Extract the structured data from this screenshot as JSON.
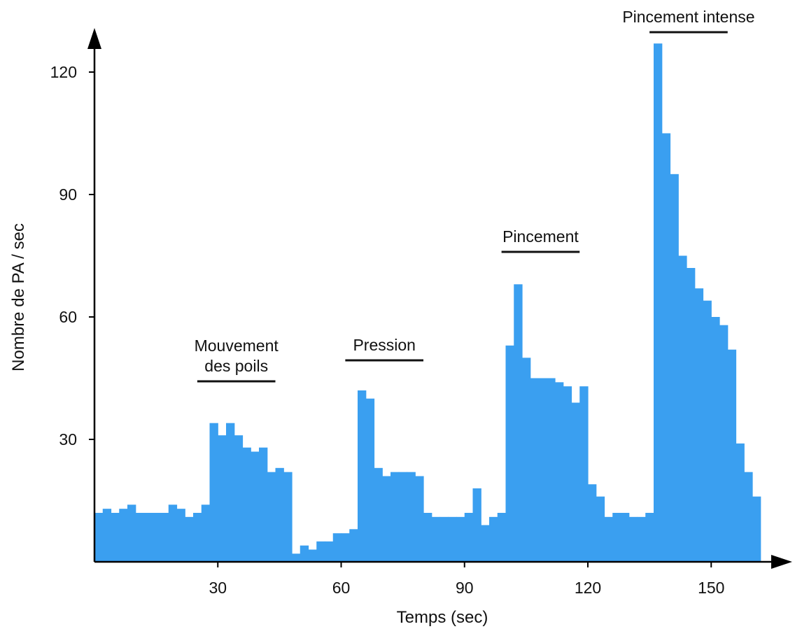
{
  "chart_data": {
    "type": "area",
    "xlabel": "Temps (sec)",
    "ylabel": "Nombre de PA / sec",
    "xlim": [
      0,
      166
    ],
    "ylim": [
      0,
      128
    ],
    "xticks": [
      30,
      60,
      90,
      120,
      150
    ],
    "yticks": [
      30,
      60,
      90,
      120
    ],
    "grid": false,
    "color": "#3a9ff0",
    "series": [
      {
        "x": [
          0,
          2,
          4,
          6,
          8,
          10,
          12,
          14,
          16,
          18,
          20,
          22,
          24,
          26,
          28,
          30,
          32,
          34,
          36,
          38,
          40,
          42,
          44,
          46,
          48,
          50,
          52,
          54,
          56,
          58,
          60,
          62,
          64,
          66,
          68,
          70,
          72,
          74,
          76,
          78,
          80,
          82,
          84,
          86,
          88,
          90,
          92,
          94,
          96,
          98,
          100,
          102,
          104,
          106,
          108,
          110,
          112,
          114,
          116,
          118,
          120,
          122,
          124,
          126,
          128,
          130,
          132,
          134,
          136,
          138,
          140,
          142,
          144,
          146,
          148,
          150,
          152,
          154,
          156,
          158,
          160
        ],
        "values": [
          12,
          13,
          12,
          13,
          14,
          12,
          12,
          12,
          12,
          14,
          13,
          11,
          12,
          14,
          34,
          31,
          34,
          31,
          28,
          27,
          28,
          22,
          23,
          22,
          2,
          4,
          3,
          5,
          5,
          7,
          7,
          8,
          42,
          40,
          23,
          21,
          22,
          22,
          22,
          21,
          12,
          11,
          11,
          11,
          11,
          12,
          18,
          9,
          11,
          12,
          53,
          68,
          50,
          45,
          45,
          45,
          44,
          43,
          39,
          43,
          19,
          16,
          11,
          12,
          12,
          11,
          11,
          12,
          127,
          105,
          95,
          75,
          72,
          67,
          64,
          60,
          58,
          52,
          29,
          22,
          16
        ]
      }
    ],
    "annotations": [
      {
        "label": "Mouvement des poils",
        "lines": [
          "Mouvement",
          "des poils"
        ],
        "start": 25,
        "end": 44
      },
      {
        "label": "Pression",
        "lines": [
          "Pression"
        ],
        "start": 61,
        "end": 80
      },
      {
        "label": "Pincement",
        "lines": [
          "Pincement"
        ],
        "start": 99,
        "end": 118
      },
      {
        "label": "Pincement intense",
        "lines": [
          "Pincement intense"
        ],
        "start": 135,
        "end": 154
      }
    ]
  }
}
